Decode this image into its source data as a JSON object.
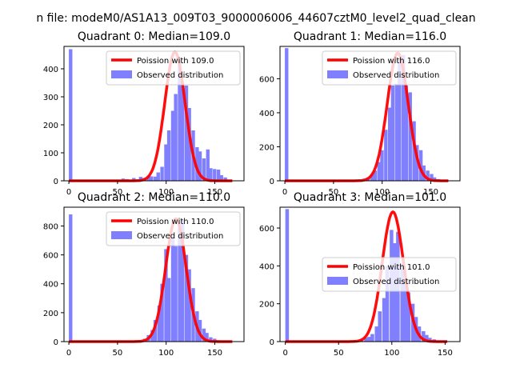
{
  "figure": {
    "suptitle": "n file: modeM0/AS1A13_009T03_9000006006_44607cztM0_level2_quad_clean"
  },
  "chart_data": [
    {
      "type": "bar",
      "title": "Quadrant 0: Median=109.0",
      "median": 109.0,
      "xlim": [
        -5,
        180
      ],
      "ylim": [
        0,
        480
      ],
      "xticks": [
        0,
        50,
        100,
        150
      ],
      "yticks": [
        0,
        100,
        200,
        300,
        400
      ],
      "legend_position": "upper-right",
      "series": [
        {
          "name": "Poission with 109.0",
          "kind": "line",
          "color": "#ff0000",
          "lambda": 109.0,
          "peak": 460
        },
        {
          "name": "Observed distribution",
          "kind": "hist",
          "color": "#8080ff",
          "bins": [
            [
              0,
              3.6,
              470
            ],
            [
              54,
              3.6,
              8
            ],
            [
              58,
              3.6,
              6
            ],
            [
              65,
              3.6,
              10
            ],
            [
              72,
              3.6,
              14
            ],
            [
              76,
              3.6,
              10
            ],
            [
              80,
              3.6,
              18
            ],
            [
              83,
              3.6,
              16
            ],
            [
              87,
              3.6,
              15
            ],
            [
              90,
              3.6,
              30
            ],
            [
              94,
              3.6,
              50
            ],
            [
              98,
              3.6,
              130
            ],
            [
              101,
              3.6,
              180
            ],
            [
              105,
              3.6,
              250
            ],
            [
              108,
              3.6,
              310
            ],
            [
              112,
              3.6,
              430
            ],
            [
              115,
              3.6,
              340
            ],
            [
              119,
              3.6,
              340
            ],
            [
              122,
              3.6,
              260
            ],
            [
              126,
              3.6,
              180
            ],
            [
              130,
              3.6,
              120
            ],
            [
              133,
              3.6,
              105
            ],
            [
              137,
              3.6,
              80
            ],
            [
              141,
              3.6,
              112
            ],
            [
              144,
              3.6,
              45
            ],
            [
              148,
              3.6,
              42
            ],
            [
              152,
              3.6,
              40
            ],
            [
              155,
              3.6,
              20
            ],
            [
              159,
              3.6,
              12
            ],
            [
              162,
              3.6,
              4
            ]
          ]
        }
      ]
    },
    {
      "type": "bar",
      "title": "Quadrant 1: Median=116.0",
      "median": 116.0,
      "xlim": [
        -5,
        180
      ],
      "ylim": [
        0,
        790
      ],
      "xticks": [
        0,
        50,
        100,
        150
      ],
      "yticks": [
        0,
        200,
        400,
        600
      ],
      "legend_position": "upper-right",
      "series": [
        {
          "name": "Poission with 116.0",
          "kind": "line",
          "color": "#ff0000",
          "lambda": 116.0,
          "peak": 750
        },
        {
          "name": "Observed distribution",
          "kind": "hist",
          "color": "#8080ff",
          "bins": [
            [
              0,
              3.6,
              780
            ],
            [
              72,
              3.6,
              5
            ],
            [
              80,
              3.6,
              12
            ],
            [
              84,
              3.6,
              20
            ],
            [
              88,
              3.6,
              40
            ],
            [
              91,
              3.6,
              60
            ],
            [
              95,
              3.6,
              110
            ],
            [
              98,
              3.6,
              180
            ],
            [
              102,
              3.6,
              300
            ],
            [
              106,
              3.6,
              430
            ],
            [
              109,
              3.6,
              560
            ],
            [
              113,
              3.6,
              570
            ],
            [
              116,
              3.6,
              710
            ],
            [
              120,
              3.6,
              740
            ],
            [
              123,
              3.6,
              560
            ],
            [
              127,
              3.6,
              520
            ],
            [
              131,
              3.6,
              350
            ],
            [
              134,
              3.6,
              210
            ],
            [
              138,
              3.6,
              180
            ],
            [
              141,
              3.6,
              90
            ],
            [
              145,
              3.6,
              60
            ],
            [
              149,
              3.6,
              40
            ],
            [
              152,
              3.6,
              20
            ],
            [
              156,
              3.6,
              10
            ],
            [
              159,
              3.6,
              5
            ]
          ]
        }
      ]
    },
    {
      "type": "bar",
      "title": "Quadrant 2: Median=110.0",
      "median": 110.0,
      "xlim": [
        -5,
        180
      ],
      "ylim": [
        0,
        930
      ],
      "xticks": [
        0,
        50,
        100,
        150
      ],
      "yticks": [
        0,
        200,
        400,
        600,
        800
      ],
      "legend_position": "upper-right",
      "series": [
        {
          "name": "Poission with 110.0",
          "kind": "line",
          "color": "#ff0000",
          "lambda": 110.0,
          "peak": 850
        },
        {
          "name": "Observed distribution",
          "kind": "hist",
          "color": "#8080ff",
          "bins": [
            [
              0,
              3.6,
              880
            ],
            [
              60,
              3.6,
              3
            ],
            [
              68,
              3.6,
              6
            ],
            [
              72,
              3.6,
              10
            ],
            [
              76,
              3.6,
              20
            ],
            [
              80,
              3.6,
              45
            ],
            [
              84,
              3.6,
              80
            ],
            [
              87,
              3.6,
              150
            ],
            [
              91,
              3.6,
              250
            ],
            [
              94,
              3.6,
              400
            ],
            [
              98,
              3.6,
              640
            ],
            [
              101,
              3.6,
              440
            ],
            [
              105,
              3.6,
              720
            ],
            [
              108,
              3.6,
              660
            ],
            [
              112,
              3.6,
              790
            ],
            [
              115,
              3.6,
              840
            ],
            [
              119,
              3.6,
              600
            ],
            [
              122,
              3.6,
              500
            ],
            [
              126,
              3.6,
              370
            ],
            [
              130,
              3.6,
              210
            ],
            [
              133,
              3.6,
              150
            ],
            [
              137,
              3.6,
              90
            ],
            [
              140,
              3.6,
              60
            ],
            [
              144,
              3.6,
              30
            ],
            [
              148,
              3.6,
              20
            ],
            [
              151,
              3.6,
              10
            ]
          ]
        }
      ]
    },
    {
      "type": "bar",
      "title": "Quadrant 3: Median=101.0",
      "median": 101.0,
      "xlim": [
        -5,
        164
      ],
      "ylim": [
        0,
        710
      ],
      "xticks": [
        0,
        50,
        100,
        150
      ],
      "yticks": [
        0,
        200,
        400,
        600
      ],
      "legend_position": "center-right",
      "series": [
        {
          "name": "Poission with 101.0",
          "kind": "line",
          "color": "#ff0000",
          "lambda": 101.0,
          "peak": 685
        },
        {
          "name": "Observed distribution",
          "kind": "hist",
          "color": "#8080ff",
          "bins": [
            [
              0,
              3.4,
              700
            ],
            [
              64,
              3.4,
              5
            ],
            [
              70,
              3.4,
              10
            ],
            [
              74,
              3.4,
              20
            ],
            [
              77,
              3.4,
              25
            ],
            [
              80,
              3.4,
              40
            ],
            [
              84,
              3.4,
              80
            ],
            [
              87,
              3.4,
              160
            ],
            [
              91,
              3.4,
              230
            ],
            [
              94,
              3.4,
              400
            ],
            [
              98,
              3.4,
              590
            ],
            [
              101,
              3.4,
              520
            ],
            [
              104,
              3.4,
              580
            ],
            [
              108,
              3.4,
              410
            ],
            [
              111,
              3.4,
              330
            ],
            [
              114,
              3.4,
              260
            ],
            [
              118,
              3.4,
              200
            ],
            [
              121,
              3.4,
              130
            ],
            [
              124,
              3.4,
              80
            ],
            [
              128,
              3.4,
              55
            ],
            [
              131,
              3.4,
              35
            ],
            [
              134,
              3.4,
              20
            ],
            [
              138,
              3.4,
              12
            ],
            [
              141,
              3.4,
              6
            ]
          ]
        }
      ]
    }
  ]
}
